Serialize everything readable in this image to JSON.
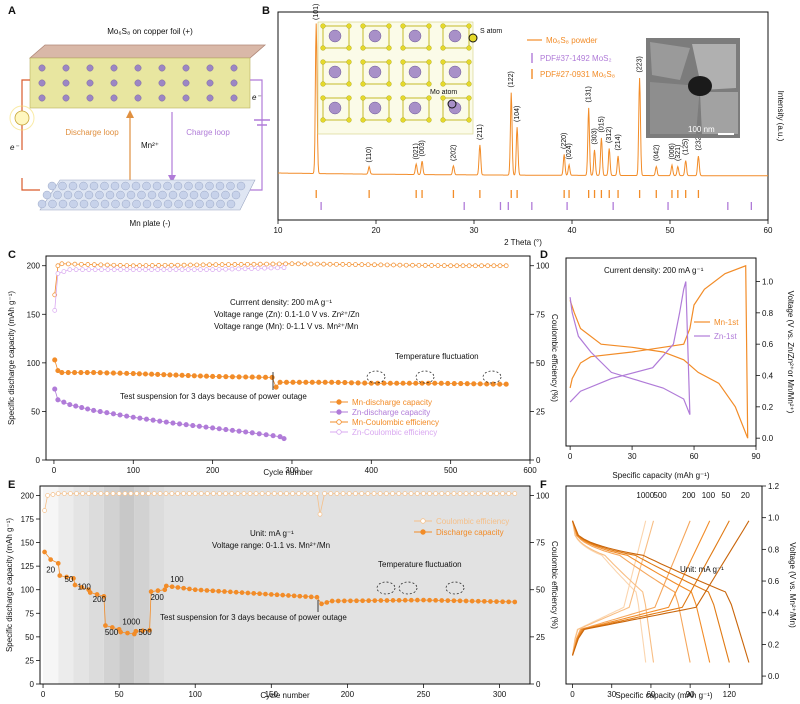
{
  "chart_data": [
    {
      "id": "A",
      "type": "diagram",
      "panel_label": "A",
      "labels": {
        "top": "Mo₆S₈ on copper foil (+)",
        "discharge": "Discharge loop",
        "charge": "Charge loop",
        "ion": "Mn²⁺",
        "bottom": "Mn plate (-)",
        "e_left": "e⁻",
        "e_right": "e⁻"
      }
    },
    {
      "id": "B",
      "type": "line",
      "panel_label": "B",
      "xlabel": "2 Theta (°)",
      "ylabel": "Intensity (a.u.)",
      "xlim": [
        10,
        60
      ],
      "xticks": [
        "10",
        "20",
        "30",
        "40",
        "50",
        "60"
      ],
      "legend": [
        "Mo₆S₈ powder",
        "PDF#37-1492 MoS₂",
        "PDF#27-0931 Mo₆S₈"
      ],
      "inset_labels": {
        "s_atom": "S atom",
        "mo_atom": "Mo atom",
        "scale": "100 nm"
      },
      "peaks": [
        {
          "x": 13.9,
          "h": 1.0,
          "label": "(101)"
        },
        {
          "x": 19.3,
          "h": 0.05,
          "label": "(110)"
        },
        {
          "x": 24.1,
          "h": 0.07,
          "label": "(021)"
        },
        {
          "x": 24.7,
          "h": 0.09,
          "label": "(003)"
        },
        {
          "x": 27.9,
          "h": 0.06,
          "label": "(202)"
        },
        {
          "x": 30.6,
          "h": 0.2,
          "label": "(211)"
        },
        {
          "x": 33.8,
          "h": 0.55,
          "label": "(122)"
        },
        {
          "x": 34.4,
          "h": 0.32,
          "label": "(104)"
        },
        {
          "x": 39.2,
          "h": 0.14,
          "label": "(220)"
        },
        {
          "x": 39.7,
          "h": 0.07,
          "label": "(024)"
        },
        {
          "x": 41.7,
          "h": 0.45,
          "label": "(131)"
        },
        {
          "x": 42.3,
          "h": 0.17,
          "label": "(303)"
        },
        {
          "x": 43.0,
          "h": 0.25,
          "label": "(015)"
        },
        {
          "x": 43.8,
          "h": 0.18,
          "label": "(312)"
        },
        {
          "x": 44.7,
          "h": 0.13,
          "label": "(214)"
        },
        {
          "x": 46.9,
          "h": 0.65,
          "label": "(223)"
        },
        {
          "x": 48.6,
          "h": 0.06,
          "label": "(042)"
        },
        {
          "x": 50.2,
          "h": 0.07,
          "label": "(006)"
        },
        {
          "x": 50.8,
          "h": 0.06,
          "label": "(321)"
        },
        {
          "x": 51.6,
          "h": 0.1,
          "label": "(125)"
        },
        {
          "x": 52.9,
          "h": 0.13,
          "label": "(232)"
        }
      ],
      "ref_mo6s8": [
        13.9,
        19.3,
        24.1,
        24.7,
        27.9,
        30.6,
        33.8,
        34.4,
        39.2,
        39.7,
        41.7,
        42.3,
        43.0,
        43.8,
        44.7,
        46.9,
        48.6,
        50.2,
        50.8,
        51.6,
        52.9
      ],
      "ref_mos2": [
        14.4,
        29.0,
        32.7,
        33.5,
        35.9,
        39.5,
        44.2,
        49.8,
        55.9,
        58.3
      ]
    },
    {
      "id": "C",
      "type": "line",
      "panel_label": "C",
      "xlabel": "Cycle number",
      "ylabel": "Specific discharge capacity (mAh g⁻¹)",
      "y2label": "Coulombic efficiency (%)",
      "xlim": [
        -10,
        600
      ],
      "ylim": [
        0,
        210
      ],
      "y2lim": [
        0,
        105
      ],
      "xticks": [
        0,
        100,
        200,
        300,
        400,
        500,
        600
      ],
      "yticks": [
        0,
        50,
        100,
        150,
        200
      ],
      "y2ticks": [
        0,
        25,
        50,
        75,
        100
      ],
      "annotations": {
        "conditions": [
          "Currrent density: 200 mA g⁻¹",
          "Voltage range (Zn): 0.1-1.0 V vs. Zn²⁺/Zn",
          "Voltage range (Mn): 0-1.1 V vs. Mn²⁺/Mn"
        ],
        "temperature": "Temperature fluctuation",
        "suspension": "Test suspension for 3 days because of power outage"
      },
      "series": [
        {
          "name": "Mn-discharge capacity",
          "color": "#F28C28",
          "points": [
            [
              1,
              103
            ],
            [
              5,
              92
            ],
            [
              10,
              90
            ],
            [
              50,
              90
            ],
            [
              100,
              89
            ],
            [
              200,
              86
            ],
            [
              275,
              85
            ],
            [
              280,
              75
            ],
            [
              285,
              80
            ],
            [
              350,
              80
            ],
            [
              400,
              79
            ],
            [
              480,
              79
            ],
            [
              570,
              78
            ]
          ]
        },
        {
          "name": "Zn-discharge capacity",
          "color": "#B07BD8",
          "points": [
            [
              1,
              73
            ],
            [
              5,
              62
            ],
            [
              20,
              57
            ],
            [
              50,
              51
            ],
            [
              100,
              44
            ],
            [
              150,
              38
            ],
            [
              200,
              33
            ],
            [
              250,
              28
            ],
            [
              285,
              24
            ],
            [
              290,
              22
            ]
          ]
        },
        {
          "name": "Mn-Coulombic efficiency",
          "color": "#F28C28",
          "points": [
            [
              1,
              85
            ],
            [
              5,
              100
            ],
            [
              10,
              101
            ],
            [
              100,
              100
            ],
            [
              300,
              101
            ],
            [
              500,
              100
            ],
            [
              570,
              100
            ]
          ]
        },
        {
          "name": "Zn-Coulombic efficiency",
          "color": "#D9A8F0",
          "points": [
            [
              1,
              77
            ],
            [
              5,
              96
            ],
            [
              20,
              98
            ],
            [
              100,
              98
            ],
            [
              200,
              98
            ],
            [
              290,
              99
            ]
          ]
        }
      ]
    },
    {
      "id": "D",
      "type": "line",
      "panel_label": "D",
      "xlabel": "Specific capacity (mAh g⁻¹)",
      "ylabel": "Voltage (V vs. Zn/Zn²⁺or Mn/Mn²⁺)",
      "xlim": [
        -2,
        90
      ],
      "ylim": [
        -0.05,
        1.15
      ],
      "xticks": [
        0,
        30,
        60,
        90
      ],
      "yticks": [
        0.0,
        0.2,
        0.4,
        0.6,
        0.8,
        1.0
      ],
      "annotations": {
        "current": "Current density: 200 mA g⁻¹"
      },
      "series": [
        {
          "name": "Mn-1st",
          "color": "#F28C28",
          "points": [
            [
              0,
              0.32
            ],
            [
              1,
              0.38
            ],
            [
              5,
              0.48
            ],
            [
              10,
              0.52
            ],
            [
              30,
              0.55
            ],
            [
              55,
              0.6
            ],
            [
              58,
              0.7
            ],
            [
              60,
              0.85
            ],
            [
              65,
              0.95
            ],
            [
              75,
              1.05
            ],
            [
              85,
              1.1
            ],
            [
              86,
              0.0
            ],
            [
              83,
              0.1
            ],
            [
              80,
              0.2
            ],
            [
              72,
              0.35
            ],
            [
              62,
              0.42
            ],
            [
              55,
              0.5
            ],
            [
              45,
              0.55
            ],
            [
              30,
              0.58
            ],
            [
              15,
              0.6
            ],
            [
              5,
              0.7
            ],
            [
              2,
              0.8
            ],
            [
              0,
              0.88
            ]
          ]
        },
        {
          "name": "Zn-1st",
          "color": "#B07BD8",
          "points": [
            [
              0,
              0.23
            ],
            [
              5,
              0.3
            ],
            [
              20,
              0.38
            ],
            [
              40,
              0.45
            ],
            [
              50,
              0.6
            ],
            [
              53,
              0.8
            ],
            [
              55,
              0.95
            ],
            [
              56,
              1.0
            ],
            [
              58,
              0.15
            ],
            [
              55,
              0.25
            ],
            [
              45,
              0.32
            ],
            [
              35,
              0.36
            ],
            [
              20,
              0.42
            ],
            [
              10,
              0.55
            ],
            [
              4,
              0.65
            ],
            [
              1,
              0.8
            ],
            [
              0,
              0.9
            ]
          ]
        }
      ]
    },
    {
      "id": "E",
      "type": "line",
      "panel_label": "E",
      "xlabel": "Cycle number",
      "ylabel": "Specific discharge capacity (mAh g⁻¹)",
      "y2label": "Coulombic efficiency (%)",
      "xlim": [
        -2,
        320
      ],
      "ylim": [
        0,
        210
      ],
      "y2lim": [
        0,
        105
      ],
      "xticks": [
        0,
        50,
        100,
        150,
        200,
        250,
        300
      ],
      "yticks": [
        0,
        25,
        50,
        75,
        100,
        125,
        150,
        175,
        200
      ],
      "y2ticks": [
        0,
        25,
        50,
        75,
        100
      ],
      "annotations": {
        "unit": "Unit: mA g⁻¹",
        "voltage": "Voltage range: 0-1.1 vs. Mn²⁺/Mn",
        "temperature": "Temperature fluctuation",
        "suspension": "Test suspension for 3 days because of power outage"
      },
      "rate_labels": [
        {
          "x": 5,
          "y": 118,
          "label": "20"
        },
        {
          "x": 17,
          "y": 108,
          "label": "50"
        },
        {
          "x": 27,
          "y": 100,
          "label": "100"
        },
        {
          "x": 37,
          "y": 87,
          "label": "200"
        },
        {
          "x": 45,
          "y": 52,
          "label": "500"
        },
        {
          "x": 58,
          "y": 63,
          "label": "1000"
        },
        {
          "x": 67,
          "y": 52,
          "label": "500"
        },
        {
          "x": 75,
          "y": 89,
          "label": "200"
        },
        {
          "x": 88,
          "y": 108,
          "label": "100"
        }
      ],
      "series": [
        {
          "name": "Coulombic efficiency",
          "color": "#F5C08A",
          "points": [
            [
              1,
              92
            ],
            [
              3,
              100
            ],
            [
              10,
              101
            ],
            [
              50,
              101
            ],
            [
              100,
              101
            ],
            [
              180,
              101
            ],
            [
              182,
              90
            ],
            [
              185,
              101
            ],
            [
              250,
              101
            ],
            [
              310,
              101
            ]
          ]
        },
        {
          "name": "Discharge capacity",
          "color": "#F28C28",
          "points": [
            [
              1,
              140
            ],
            [
              5,
              132
            ],
            [
              10,
              128
            ],
            [
              11,
              115
            ],
            [
              20,
              112
            ],
            [
              21,
              105
            ],
            [
              30,
              100
            ],
            [
              31,
              97
            ],
            [
              40,
              93
            ],
            [
              41,
              62
            ],
            [
              50,
              58
            ],
            [
              51,
              55
            ],
            [
              60,
              53
            ],
            [
              61,
              56
            ],
            [
              70,
              57
            ],
            [
              71,
              98
            ],
            [
              80,
              100
            ],
            [
              81,
              104
            ],
            [
              100,
              100
            ],
            [
              150,
              95
            ],
            [
              180,
              92
            ],
            [
              183,
              85
            ],
            [
              190,
              88
            ],
            [
              250,
              89
            ],
            [
              310,
              87
            ]
          ]
        }
      ]
    },
    {
      "id": "F",
      "type": "line",
      "panel_label": "F",
      "xlabel": "Specific capacity (mAh g⁻¹)",
      "ylabel": "Voltage (V vs. Mn²⁺/Mn)",
      "xlim": [
        -5,
        145
      ],
      "ylim": [
        -0.05,
        1.2
      ],
      "xticks": [
        0,
        30,
        60,
        90,
        120
      ],
      "yticks": [
        0.0,
        0.2,
        0.4,
        0.6,
        0.8,
        1.0,
        1.2
      ],
      "annotations": {
        "unit": "Unit: mA g⁻¹"
      },
      "rates": [
        "1000",
        "500",
        "200",
        "100",
        "50",
        "20"
      ],
      "capacity_max": [
        56,
        62,
        90,
        105,
        120,
        135
      ],
      "colors": [
        "#FBD5AE",
        "#F8BE84",
        "#F5A65B",
        "#F28C28",
        "#E07A14",
        "#C9650A"
      ]
    }
  ]
}
